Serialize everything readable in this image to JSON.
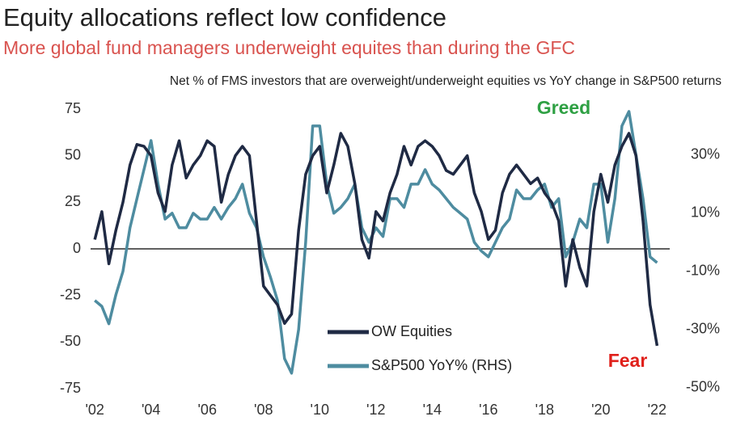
{
  "chart_data": {
    "type": "line",
    "title": "Equity allocations reflect low confidence",
    "subtitle": "More global fund managers underweight equites than during the GFC",
    "note": "Net % of FMS investors that are overweight/underweight equities vs YoY change in S&P500 returns",
    "annotations": [
      "Greed",
      "Fear"
    ],
    "x": [
      2002,
      2002.25,
      2002.5,
      2002.75,
      2003,
      2003.25,
      2003.5,
      2003.75,
      2004,
      2004.25,
      2004.5,
      2004.75,
      2005,
      2005.25,
      2005.5,
      2005.75,
      2006,
      2006.25,
      2006.5,
      2006.75,
      2007,
      2007.25,
      2007.5,
      2007.75,
      2008,
      2008.25,
      2008.5,
      2008.75,
      2009,
      2009.25,
      2009.5,
      2009.75,
      2010,
      2010.25,
      2010.5,
      2010.75,
      2011,
      2011.25,
      2011.5,
      2011.75,
      2012,
      2012.25,
      2012.5,
      2012.75,
      2013,
      2013.25,
      2013.5,
      2013.75,
      2014,
      2014.25,
      2014.5,
      2014.75,
      2015,
      2015.25,
      2015.5,
      2015.75,
      2016,
      2016.25,
      2016.5,
      2016.75,
      2017,
      2017.25,
      2017.5,
      2017.75,
      2018,
      2018.25,
      2018.5,
      2018.75,
      2019,
      2019.25,
      2019.5,
      2019.75,
      2020,
      2020.25,
      2020.5,
      2020.75,
      2021,
      2021.25,
      2021.5,
      2021.75,
      2022
    ],
    "series": [
      {
        "name": "OW Equities",
        "color": "#1f2a44",
        "axis": "y",
        "values": [
          5,
          20,
          -8,
          10,
          25,
          45,
          56,
          55,
          50,
          30,
          20,
          45,
          58,
          38,
          45,
          50,
          58,
          55,
          25,
          40,
          50,
          55,
          50,
          15,
          -20,
          -25,
          -30,
          -40,
          -35,
          10,
          40,
          50,
          55,
          30,
          45,
          62,
          55,
          35,
          5,
          -5,
          20,
          15,
          30,
          40,
          55,
          45,
          55,
          58,
          55,
          50,
          42,
          40,
          45,
          50,
          30,
          20,
          5,
          10,
          30,
          40,
          45,
          40,
          35,
          38,
          30,
          25,
          15,
          -20,
          5,
          -10,
          -20,
          20,
          40,
          25,
          45,
          55,
          62,
          50,
          15,
          -30,
          -52
        ]
      },
      {
        "name": "S&P500 YoY% (RHS)",
        "color": "#4e8ca0",
        "axis": "y2",
        "values": [
          -20,
          -22,
          -28,
          -18,
          -10,
          5,
          15,
          25,
          35,
          20,
          8,
          10,
          5,
          5,
          10,
          8,
          8,
          12,
          8,
          12,
          15,
          20,
          10,
          5,
          -5,
          -12,
          -20,
          -40,
          -45,
          -30,
          0,
          40,
          40,
          20,
          10,
          12,
          15,
          20,
          5,
          0,
          5,
          2,
          15,
          15,
          12,
          20,
          20,
          25,
          20,
          18,
          15,
          12,
          10,
          8,
          0,
          -3,
          -5,
          0,
          5,
          8,
          18,
          15,
          15,
          18,
          20,
          12,
          15,
          -5,
          0,
          8,
          5,
          20,
          20,
          0,
          15,
          40,
          45,
          30,
          15,
          -5,
          -7
        ]
      }
    ],
    "xlim": [
      2001.85,
      2022.45
    ],
    "xticks": [
      {
        "value": 2002,
        "label": "'02"
      },
      {
        "value": 2004,
        "label": "'04"
      },
      {
        "value": 2006,
        "label": "'06"
      },
      {
        "value": 2008,
        "label": "'08"
      },
      {
        "value": 2010,
        "label": "'10"
      },
      {
        "value": 2012,
        "label": "'12"
      },
      {
        "value": 2014,
        "label": "'14"
      },
      {
        "value": 2016,
        "label": "'16"
      },
      {
        "value": 2018,
        "label": "'18"
      },
      {
        "value": 2020,
        "label": "'20"
      },
      {
        "value": 2022,
        "label": "'22"
      }
    ],
    "ylim": [
      -75,
      75
    ],
    "yticks": [
      -75,
      -50,
      -25,
      0,
      25,
      50,
      75
    ],
    "y2lim": [
      -50.3,
      45.8
    ],
    "y2ticks": [
      {
        "value": 30,
        "label": "30%"
      },
      {
        "value": 10,
        "label": "10%"
      },
      {
        "value": -10,
        "label": "-10%"
      },
      {
        "value": -30,
        "label": "-30%"
      },
      {
        "value": -50,
        "label": "-50%"
      }
    ]
  }
}
